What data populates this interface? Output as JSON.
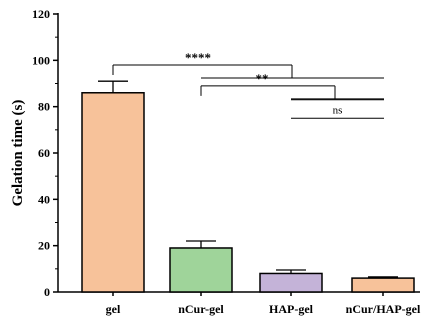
{
  "chart_data": {
    "type": "bar",
    "ylabel": "Gelation time (s)",
    "ylim": [
      0,
      120
    ],
    "yticks": [
      0,
      20,
      40,
      60,
      80,
      100,
      120
    ],
    "categories": [
      "gel",
      "nCur-gel",
      "HAP-gel",
      "nCur/HAP-gel"
    ],
    "values": [
      86,
      19,
      8,
      6
    ],
    "errors": [
      5,
      3,
      1.5,
      0.5
    ],
    "bar_colors": [
      "#f7c29a",
      "#9fd49a",
      "#c4b3d8",
      "#f7c29a"
    ],
    "grid": false,
    "significance": [
      {
        "label": "****",
        "from": 0,
        "to": [
          1,
          2,
          3
        ],
        "y_bracket": 98
      },
      {
        "label": "**",
        "from": 1,
        "to": [
          2,
          3
        ],
        "y_bracket": 89
      },
      {
        "label": "ns",
        "from": 2,
        "to": [
          3
        ],
        "y_bracket": 75
      }
    ]
  }
}
